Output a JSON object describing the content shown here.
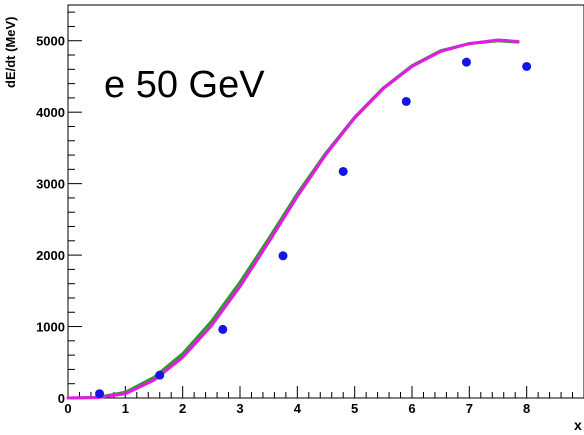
{
  "chart_data": {
    "type": "scatter",
    "title": "",
    "annotation": "e 50 GeV",
    "xlabel": "x",
    "ylabel": "dE/dt (MeV)",
    "xlim": [
      0,
      9.0
    ],
    "ylim": [
      0,
      5500
    ],
    "xticks": [
      0,
      1,
      2,
      3,
      4,
      5,
      6,
      7,
      8
    ],
    "yticks": [
      0,
      1000,
      2000,
      3000,
      4000,
      5000
    ],
    "grid": false,
    "series": [
      {
        "kind": "points",
        "color": "#1414e6",
        "x": [
          0.55,
          1.6,
          2.7,
          3.75,
          4.8,
          5.9,
          6.95,
          8.0
        ],
        "y": [
          60,
          320,
          960,
          1990,
          3170,
          4150,
          4700,
          4640
        ]
      },
      {
        "kind": "curve",
        "color": "#2e9a2e",
        "x": [
          0.0,
          0.5,
          1.0,
          1.5,
          2.0,
          2.5,
          3.0,
          3.5,
          4.0,
          4.5,
          5.0,
          5.5,
          6.0,
          6.5,
          7.0,
          7.5,
          7.85
        ],
        "y": [
          0,
          8,
          80,
          290,
          620,
          1070,
          1620,
          2230,
          2860,
          3430,
          3930,
          4340,
          4650,
          4860,
          4960,
          5000,
          4980
        ]
      },
      {
        "kind": "curve",
        "color": "#e619e6",
        "x": [
          0.0,
          0.5,
          1.0,
          1.5,
          2.0,
          2.5,
          3.0,
          3.5,
          4.0,
          4.5,
          5.0,
          5.5,
          6.0,
          6.5,
          7.0,
          7.5,
          7.85
        ],
        "y": [
          0,
          5,
          60,
          250,
          570,
          1010,
          1560,
          2180,
          2820,
          3410,
          3920,
          4330,
          4640,
          4850,
          4960,
          5010,
          4990
        ]
      }
    ]
  }
}
